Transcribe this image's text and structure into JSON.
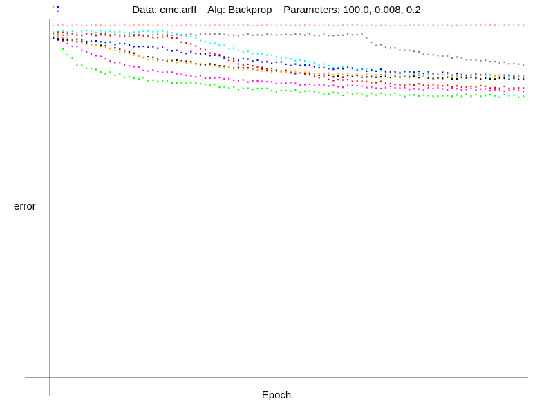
{
  "chart_data": {
    "type": "scatter",
    "title": "Data: cmc.arff    Alg: Backprop    Parameters: 100.0, 0.008, 0.2",
    "xlabel": "Epoch",
    "ylabel": "error",
    "xlim": [
      0,
      100
    ],
    "ylim": [
      0,
      100
    ],
    "grid": false,
    "legend": "none",
    "x_points": 100,
    "series": [
      {
        "color": "#ffaaaa",
        "anchors": [
          [
            0,
            96.9
          ],
          [
            100,
            96.9
          ]
        ],
        "jitter": 0.15
      },
      {
        "color": "#808080",
        "anchors": [
          [
            0,
            94.3
          ],
          [
            66,
            94.3
          ],
          [
            68,
            91.7
          ],
          [
            80,
            88.8
          ],
          [
            100,
            85.9
          ]
        ],
        "jitter": 0.25
      },
      {
        "color": "#00ffff",
        "anchors": [
          [
            0,
            95.1
          ],
          [
            25,
            95.1
          ],
          [
            40,
            89.8
          ],
          [
            60,
            85.4
          ],
          [
            80,
            83.3
          ],
          [
            100,
            82.5
          ]
        ],
        "jitter": 0.3
      },
      {
        "color": "#0000ff",
        "anchors": [
          [
            0,
            93.5
          ],
          [
            20,
            91.0
          ],
          [
            40,
            87.4
          ],
          [
            60,
            85.1
          ],
          [
            80,
            83.7
          ],
          [
            100,
            82.7
          ]
        ],
        "jitter": 0.4
      },
      {
        "color": "#000000",
        "anchors": [
          [
            0,
            93.3
          ],
          [
            10,
            91.5
          ],
          [
            20,
            88.0
          ],
          [
            40,
            85.1
          ],
          [
            60,
            82.9
          ],
          [
            80,
            82.5
          ],
          [
            100,
            82.0
          ]
        ],
        "jitter": 0.3
      },
      {
        "color": "#ff0000",
        "anchors": [
          [
            0,
            94.7
          ],
          [
            25,
            93.6
          ],
          [
            40,
            86.2
          ],
          [
            60,
            81.9
          ],
          [
            80,
            80.3
          ],
          [
            100,
            79.7
          ]
        ],
        "jitter": 0.35
      },
      {
        "color": "#ffa500",
        "anchors": [
          [
            0,
            94.0
          ],
          [
            10,
            91.0
          ],
          [
            20,
            87.8
          ],
          [
            40,
            84.8
          ],
          [
            60,
            83.5
          ],
          [
            80,
            83.1
          ],
          [
            100,
            83.1
          ]
        ],
        "jitter": 0.3
      },
      {
        "color": "#ff00ff",
        "anchors": [
          [
            2,
            92.4
          ],
          [
            10,
            88.0
          ],
          [
            20,
            84.4
          ],
          [
            40,
            81.6
          ],
          [
            60,
            80.2
          ],
          [
            80,
            79.4
          ],
          [
            100,
            79.0
          ]
        ],
        "jitter": 0.35
      },
      {
        "color": "#00ff00",
        "anchors": [
          [
            2,
            90.2
          ],
          [
            5,
            86.3
          ],
          [
            10,
            84.0
          ],
          [
            20,
            81.9
          ],
          [
            40,
            79.5
          ],
          [
            60,
            78.0
          ],
          [
            80,
            77.6
          ],
          [
            100,
            77.4
          ]
        ],
        "jitter": 0.45
      }
    ],
    "outliers": [
      {
        "color": "#ffa500",
        "x": 0,
        "y": 101.9
      },
      {
        "color": "#0000ff",
        "x": 1,
        "y": 101.9
      },
      {
        "color": "#ff00ff",
        "x": 1,
        "y": 100.6
      }
    ]
  }
}
